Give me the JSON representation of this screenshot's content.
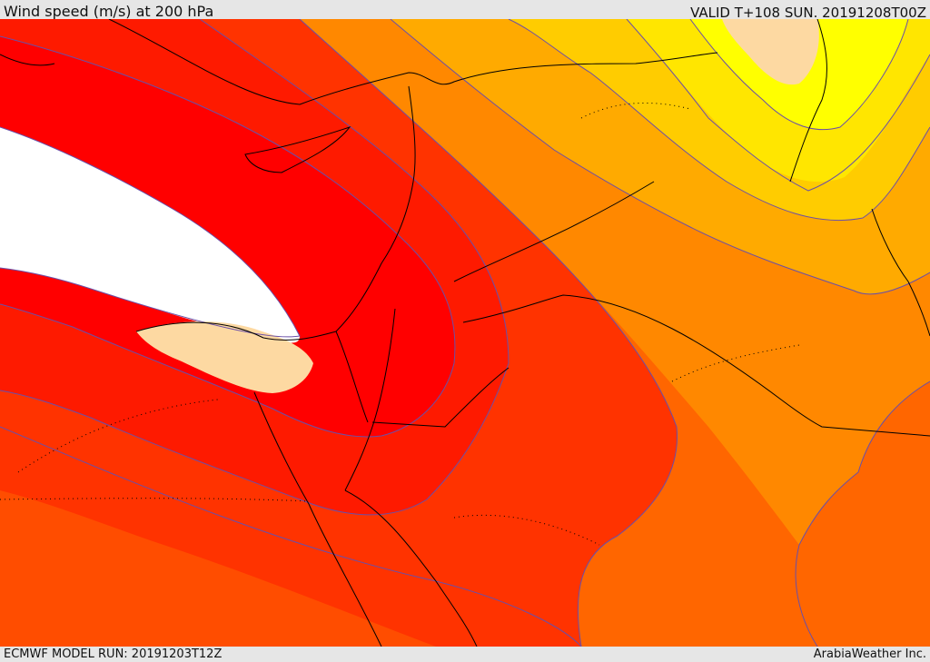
{
  "header": {
    "title": "Wind speed (m/s) at 200 hPa",
    "valid": "VALID T+108 SUN. 20191208T00Z"
  },
  "footer": {
    "model_run": "ECMWF MODEL RUN: 20191203T12Z",
    "credit": "ArabiaWeather Inc."
  },
  "map": {
    "field": "wind speed at 200 hPa",
    "colors": {
      "core_white": "#ffffff",
      "core_tan": "#fdd9a2",
      "red_1": "#ff0000",
      "red_2": "#fe1a00",
      "red_3": "#ff3300",
      "orange_1": "#ff4d00",
      "orange_2": "#ff6600",
      "orange_3": "#ff8800",
      "orange_4": "#ffaa00",
      "yellow_1": "#ffcc00",
      "yellow_2": "#ffe600",
      "yellow_3": "#ffff00",
      "contour": "#6a4fa8",
      "coast": "#000000"
    }
  }
}
